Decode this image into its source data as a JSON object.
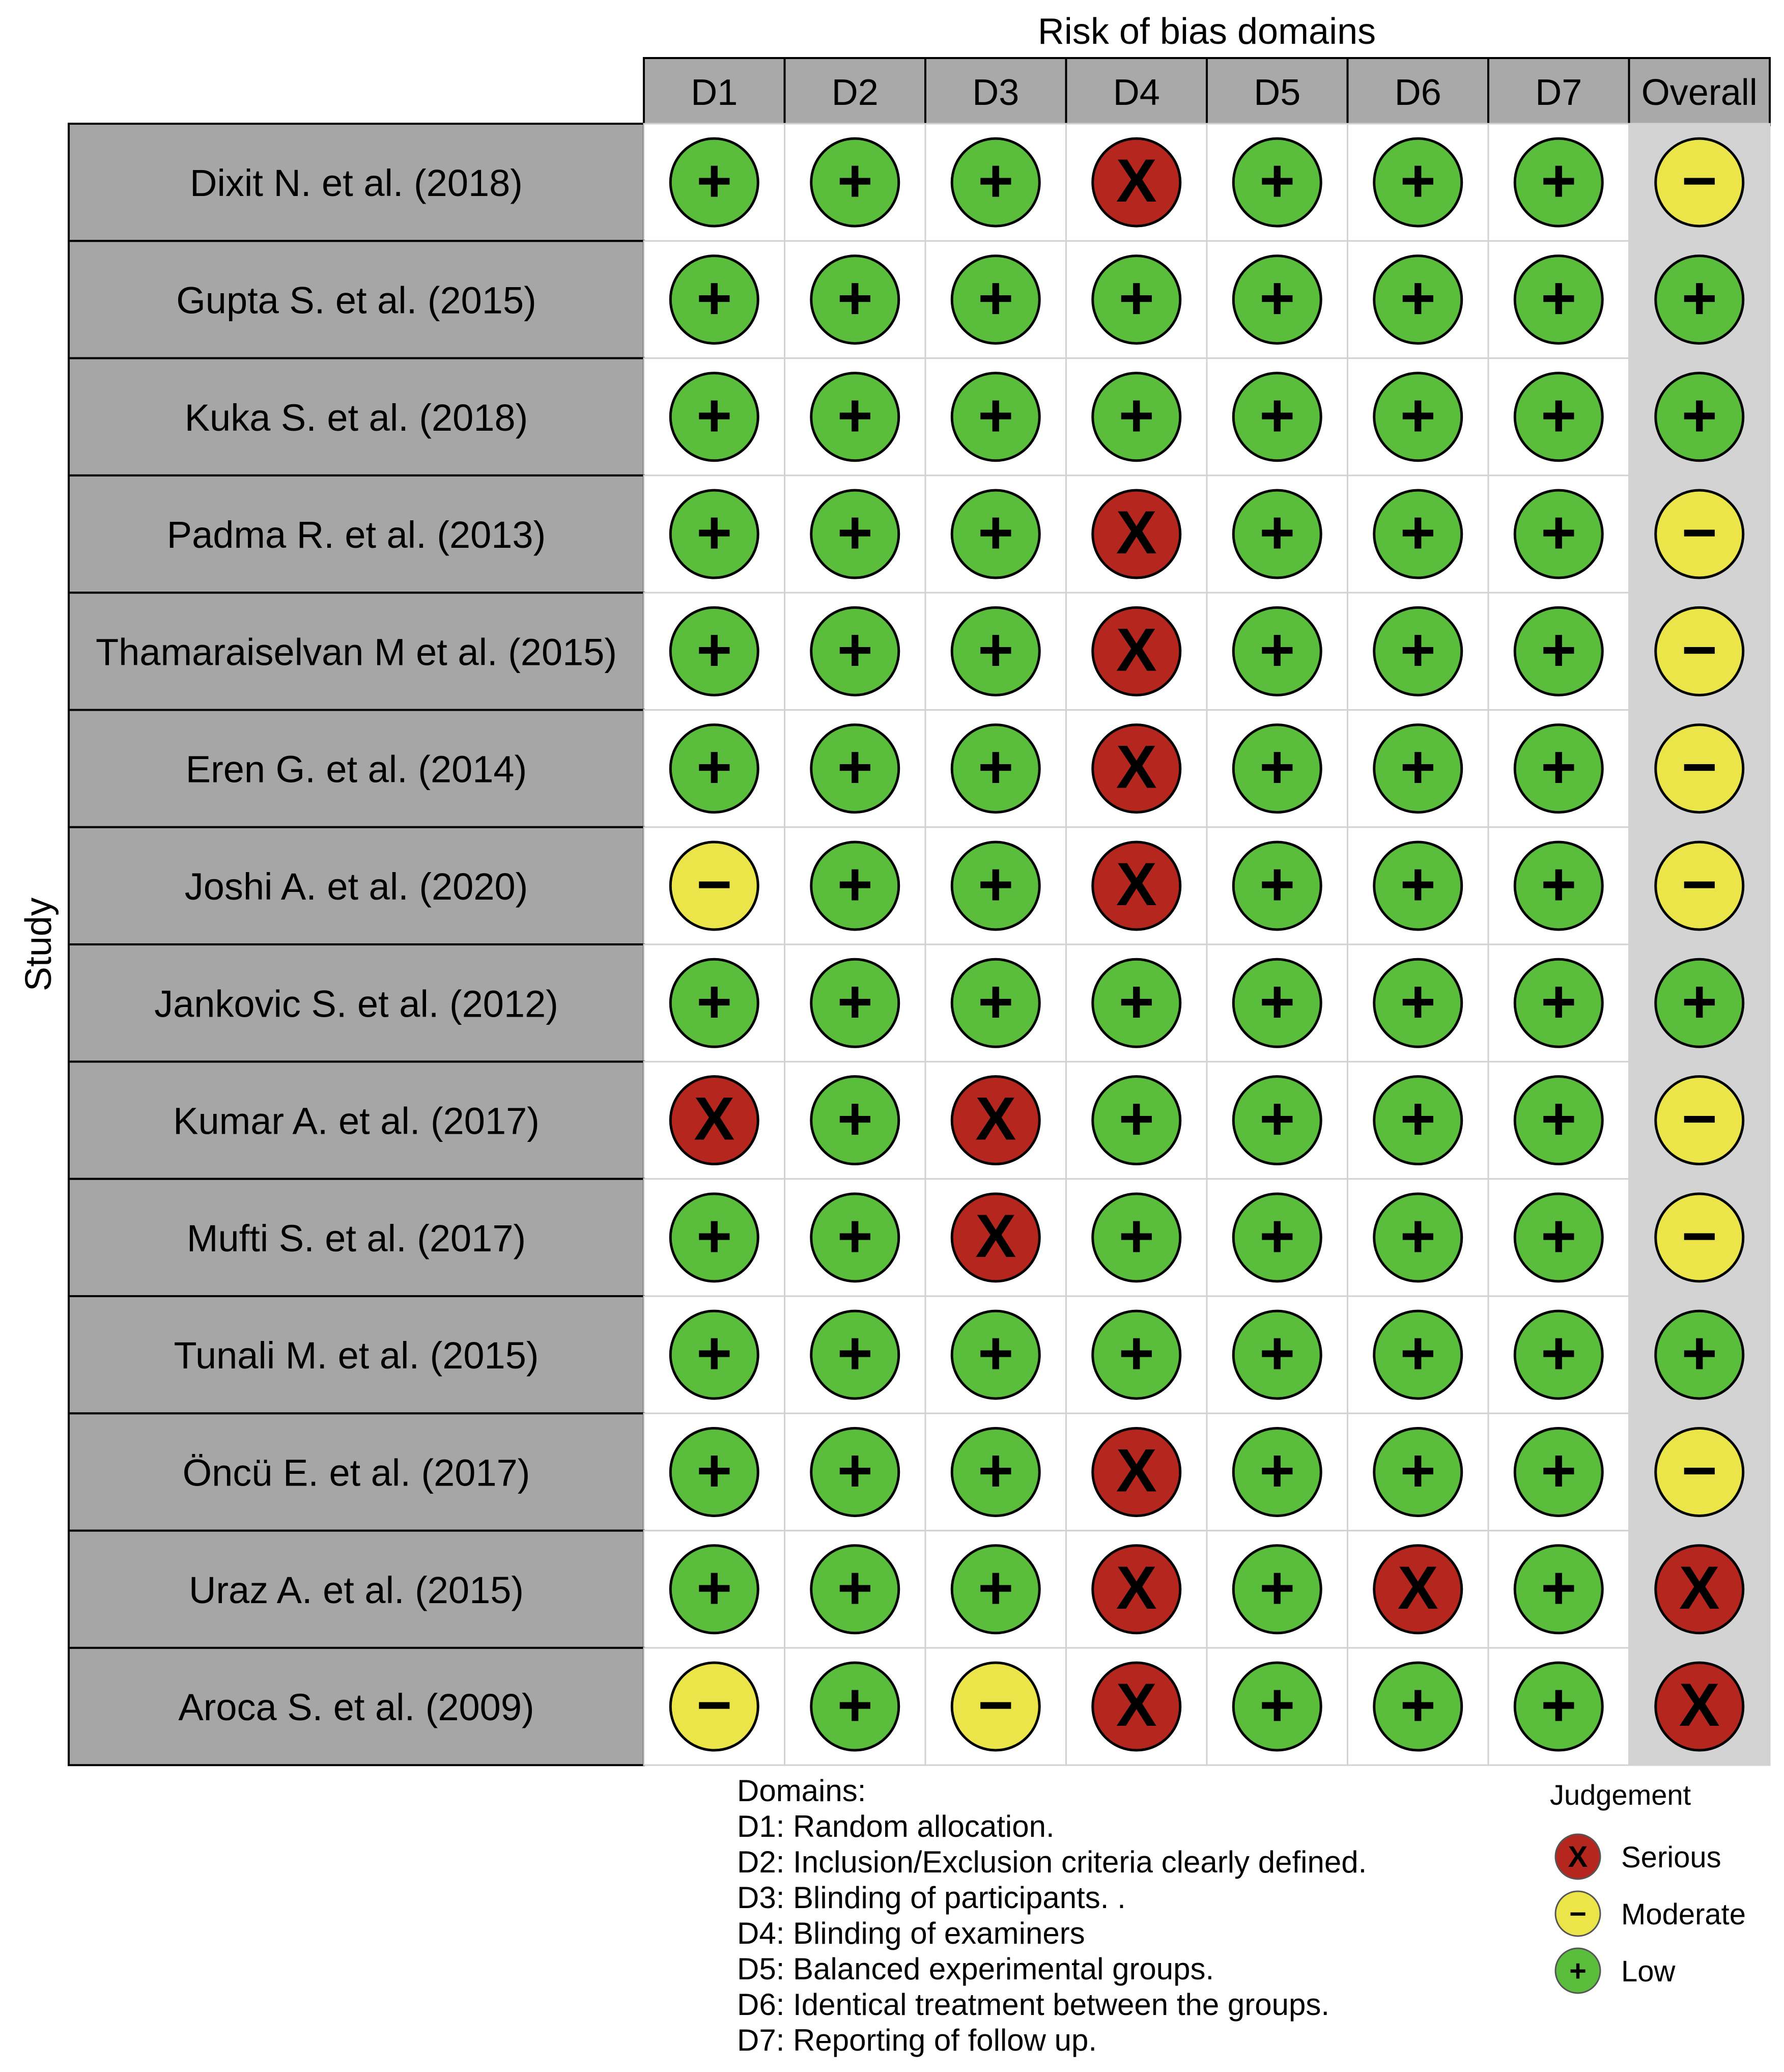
{
  "chart_data": {
    "type": "table",
    "title": "Risk of bias domains",
    "ylabel": "Study",
    "columns": [
      "D1",
      "D2",
      "D3",
      "D4",
      "D5",
      "D6",
      "D7",
      "Overall"
    ],
    "rows": [
      {
        "study": "Dixit N. et al. (2018)",
        "judgements": [
          "low",
          "low",
          "low",
          "serious",
          "low",
          "low",
          "low",
          "moderate"
        ]
      },
      {
        "study": "Gupta S. et al.  (2015)",
        "judgements": [
          "low",
          "low",
          "low",
          "low",
          "low",
          "low",
          "low",
          "low"
        ]
      },
      {
        "study": "Kuka S. et al.  (2018)",
        "judgements": [
          "low",
          "low",
          "low",
          "low",
          "low",
          "low",
          "low",
          "low"
        ]
      },
      {
        "study": "Padma R. et al.  (2013)",
        "judgements": [
          "low",
          "low",
          "low",
          "serious",
          "low",
          "low",
          "low",
          "moderate"
        ]
      },
      {
        "study": "Thamaraiselvan M et al. (2015)",
        "judgements": [
          "low",
          "low",
          "low",
          "serious",
          "low",
          "low",
          "low",
          "moderate"
        ]
      },
      {
        "study": "Eren G. et al. (2014)",
        "judgements": [
          "low",
          "low",
          "low",
          "serious",
          "low",
          "low",
          "low",
          "moderate"
        ]
      },
      {
        "study": "Joshi A. et al. (2020)",
        "judgements": [
          "moderate",
          "low",
          "low",
          "serious",
          "low",
          "low",
          "low",
          "moderate"
        ]
      },
      {
        "study": "Jankovic S. et al.  (2012)",
        "judgements": [
          "low",
          "low",
          "low",
          "low",
          "low",
          "low",
          "low",
          "low"
        ]
      },
      {
        "study": "Kumar A. et al. (2017)",
        "judgements": [
          "serious",
          "low",
          "serious",
          "low",
          "low",
          "low",
          "low",
          "moderate"
        ]
      },
      {
        "study": "Mufti S. et al.  (2017)",
        "judgements": [
          "low",
          "low",
          "serious",
          "low",
          "low",
          "low",
          "low",
          "moderate"
        ]
      },
      {
        "study": "Tunali M. et al. (2015)",
        "judgements": [
          "low",
          "low",
          "low",
          "low",
          "low",
          "low",
          "low",
          "low"
        ]
      },
      {
        "study": "Öncü E. et al.  (2017)",
        "judgements": [
          "low",
          "low",
          "low",
          "serious",
          "low",
          "low",
          "low",
          "moderate"
        ]
      },
      {
        "study": "Uraz A. et al.  (2015)",
        "judgements": [
          "low",
          "low",
          "low",
          "serious",
          "low",
          "serious",
          "low",
          "serious"
        ]
      },
      {
        "study": "Aroca S. et al. (2009)",
        "judgements": [
          "moderate",
          "low",
          "moderate",
          "serious",
          "low",
          "low",
          "low",
          "serious"
        ]
      }
    ],
    "domains_heading": "Domains:",
    "domain_descriptions": [
      "D1: Random allocation.",
      "D2: Inclusion/Exclusion criteria clearly defined.",
      "D3: Blinding of participants.                    .",
      "D4: Blinding of examiners",
      "D5: Balanced experimental groups.",
      "D6: Identical treatment between the groups.",
      "D7: Reporting of follow up."
    ],
    "legend": {
      "title": "Judgement",
      "items": [
        {
          "key": "serious",
          "label": "Serious"
        },
        {
          "key": "moderate",
          "label": "Moderate"
        },
        {
          "key": "low",
          "label": "Low"
        }
      ]
    },
    "symbols": {
      "low": "+",
      "moderate": "−",
      "serious": "X"
    },
    "colors": {
      "low": "#5bbd3c",
      "moderate": "#ece54a",
      "serious": "#b5261e",
      "header_bg": "#a9a9a9",
      "study_bg": "#a6a6a6",
      "overall_bg": "#d3d3d3",
      "cell_bg": "#ffffff"
    }
  }
}
